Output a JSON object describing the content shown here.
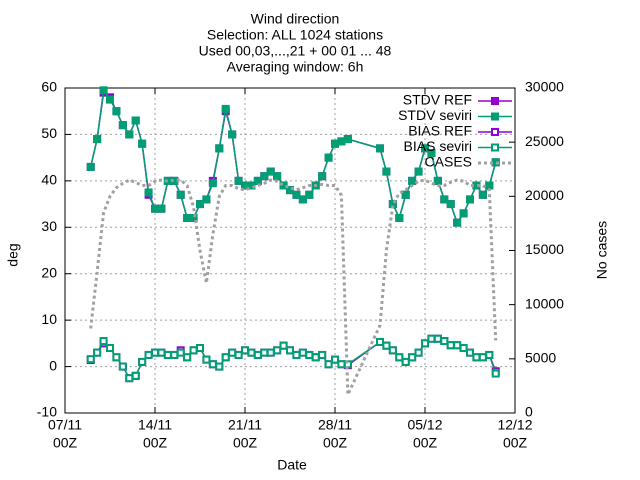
{
  "chart_data": {
    "type": "line",
    "title": [
      "Wind direction",
      "Selection: ALL   1024 stations",
      "Used 00,03,...,21 + 00 01 ... 48",
      "Averaging window:  6h"
    ],
    "x_label": "Date",
    "y_label": "deg",
    "y2_label": "No cases",
    "xlim": [
      "07/11 00Z",
      "12/12 00Z"
    ],
    "xticks": [
      {
        "value": "07/11 00Z",
        "label": [
          "07/11",
          "00Z"
        ]
      },
      {
        "value": "14/11 00Z",
        "label": [
          "14/11",
          "00Z"
        ]
      },
      {
        "value": "21/11 00Z",
        "label": [
          "21/11",
          "00Z"
        ]
      },
      {
        "value": "28/11 00Z",
        "label": [
          "28/11",
          "00Z"
        ]
      },
      {
        "value": "05/12 00Z",
        "label": [
          "05/12",
          "00Z"
        ]
      },
      {
        "value": "12/12 00Z",
        "label": [
          "12/12",
          "00Z"
        ]
      }
    ],
    "ylim": [
      -10,
      60
    ],
    "yticks": [
      -10,
      0,
      10,
      20,
      30,
      40,
      50,
      60
    ],
    "y2lim": [
      0,
      30000
    ],
    "y2ticks": [
      0,
      5000,
      10000,
      15000,
      20000,
      25000,
      30000
    ],
    "grid": true,
    "legend": "top-right",
    "x": [
      "09/11 00Z",
      "09/11 12Z",
      "10/11 00Z",
      "10/11 12Z",
      "11/11 00Z",
      "11/11 12Z",
      "12/11 00Z",
      "12/11 12Z",
      "13/11 00Z",
      "13/11 12Z",
      "14/11 00Z",
      "14/11 12Z",
      "15/11 00Z",
      "15/11 12Z",
      "16/11 00Z",
      "16/11 12Z",
      "17/11 00Z",
      "17/11 12Z",
      "18/11 00Z",
      "18/11 12Z",
      "19/11 00Z",
      "19/11 12Z",
      "20/11 00Z",
      "20/11 12Z",
      "21/11 00Z",
      "21/11 12Z",
      "22/11 00Z",
      "22/11 12Z",
      "23/11 00Z",
      "23/11 12Z",
      "24/11 00Z",
      "24/11 12Z",
      "25/11 00Z",
      "25/11 12Z",
      "26/11 00Z",
      "26/11 12Z",
      "27/11 00Z",
      "27/11 12Z",
      "28/11 00Z",
      "28/11 12Z",
      "29/11 00Z",
      "01/12 12Z",
      "02/12 00Z",
      "02/12 12Z",
      "03/12 00Z",
      "03/12 12Z",
      "04/12 00Z",
      "04/12 12Z",
      "05/12 00Z",
      "05/12 12Z",
      "06/12 00Z",
      "06/12 12Z",
      "07/12 00Z",
      "07/12 12Z",
      "08/12 00Z",
      "08/12 12Z",
      "09/12 00Z",
      "09/12 12Z",
      "10/12 00Z",
      "10/12 12Z"
    ],
    "series": [
      {
        "name": "STDV REF",
        "color": "#9400d3",
        "marker": "cross",
        "values": [
          43,
          49,
          59,
          58,
          55,
          52,
          50,
          53,
          48,
          37,
          34,
          34,
          40,
          40,
          37,
          32,
          32,
          35,
          36,
          40,
          47,
          55,
          50,
          40,
          39,
          39,
          40,
          41,
          42,
          41,
          39,
          38,
          37,
          36,
          37,
          39,
          41,
          45,
          48,
          48.5,
          49,
          47,
          42,
          35,
          32,
          37,
          40,
          42,
          47,
          46,
          40,
          36,
          35,
          31,
          33,
          36,
          39,
          37,
          39,
          44
        ]
      },
      {
        "name": "STDV seviri",
        "color": "#009e73",
        "marker": "cross",
        "values": [
          43,
          49,
          59.5,
          57.5,
          55,
          52,
          50,
          53,
          48,
          37.5,
          34,
          34,
          40,
          40,
          37,
          32,
          32,
          35,
          36,
          39.5,
          47,
          55.5,
          50,
          40,
          39,
          39,
          40,
          41,
          42,
          41,
          39,
          38,
          37,
          36,
          37,
          39,
          41,
          45,
          48,
          48.5,
          49,
          47,
          42,
          35,
          32,
          37,
          40,
          42,
          47,
          46,
          40,
          36,
          35,
          31,
          33,
          36,
          39,
          37,
          39,
          44
        ]
      },
      {
        "name": "BIAS REF",
        "color": "#9400d3",
        "marker": "square",
        "values": [
          1.4,
          3,
          5,
          4,
          2,
          0,
          -2.5,
          -2,
          1,
          2.5,
          3,
          3,
          2.5,
          2.5,
          3.5,
          2,
          3.5,
          4,
          1.5,
          0.5,
          0,
          2,
          3,
          2.5,
          3.5,
          3,
          2.5,
          3,
          3,
          3.5,
          4.5,
          3.5,
          2.5,
          3,
          2.5,
          2,
          2.5,
          0.5,
          1.5,
          0.5,
          0.3,
          5.3,
          4.5,
          3.5,
          2,
          1,
          2,
          3,
          5,
          6,
          6,
          5.5,
          4.6,
          4.6,
          4,
          3,
          2,
          2,
          2.5,
          -1
        ]
      },
      {
        "name": "BIAS seviri",
        "color": "#009e73",
        "marker": "square",
        "values": [
          1.6,
          3,
          5.5,
          4,
          2,
          0,
          -2.5,
          -2,
          1,
          2.5,
          3,
          3,
          2.5,
          2.5,
          3,
          2,
          3.5,
          4,
          1.5,
          0.5,
          0,
          2,
          3,
          2.5,
          3.5,
          3,
          2.5,
          3,
          3,
          3.5,
          4.5,
          3.5,
          2.5,
          3,
          2.5,
          2,
          2.5,
          0.5,
          1.5,
          0.5,
          0.5,
          5.3,
          4.5,
          3.5,
          2,
          1,
          2,
          3,
          5,
          6,
          6,
          5.5,
          4.6,
          4.6,
          4,
          3,
          2,
          2,
          2.5,
          -1.5
        ]
      },
      {
        "name": "CASES",
        "color": "#a0a0a0",
        "marker": "none",
        "dash": true,
        "axis": "y2",
        "values": [
          7800,
          13000,
          18500,
          20000,
          20800,
          21200,
          21500,
          21300,
          21000,
          21000,
          21400,
          21500,
          21400,
          21500,
          21500,
          21000,
          19000,
          15000,
          12000,
          16500,
          20000,
          21000,
          21000,
          20700,
          20600,
          20800,
          21000,
          21200,
          21500,
          21400,
          21000,
          20800,
          20600,
          20800,
          21000,
          21000,
          21100,
          21000,
          21000,
          20100,
          1700,
          8100,
          15000,
          19200,
          20300,
          20600,
          21000,
          21400,
          21500,
          21200,
          21000,
          21000,
          21300,
          21500,
          21400,
          21000,
          21000,
          21000,
          20600,
          6700
        ]
      }
    ]
  }
}
